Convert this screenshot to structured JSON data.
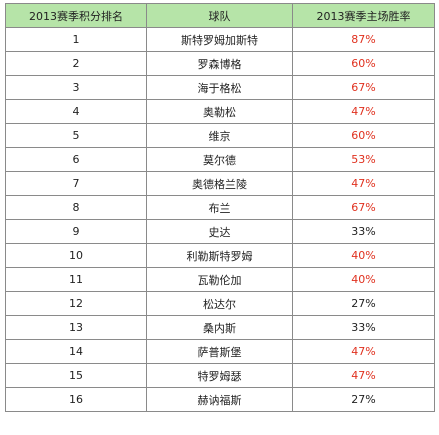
{
  "table": {
    "headers": [
      "2013赛季积分排名",
      "球队",
      "2013赛季主场胜率"
    ],
    "rows": [
      {
        "rank": "1",
        "team": "斯特罗姆加斯特",
        "rate": "87%",
        "color": "#e0301e"
      },
      {
        "rank": "2",
        "team": "罗森博格",
        "rate": "60%",
        "color": "#e0301e"
      },
      {
        "rank": "3",
        "team": "海于格松",
        "rate": "67%",
        "color": "#e0301e"
      },
      {
        "rank": "4",
        "team": "奥勒松",
        "rate": "47%",
        "color": "#e0301e"
      },
      {
        "rank": "5",
        "team": "维京",
        "rate": "60%",
        "color": "#e0301e"
      },
      {
        "rank": "6",
        "team": "莫尔德",
        "rate": "53%",
        "color": "#e0301e"
      },
      {
        "rank": "7",
        "team": "奥德格兰陵",
        "rate": "47%",
        "color": "#e0301e"
      },
      {
        "rank": "8",
        "team": "布兰",
        "rate": "67%",
        "color": "#e0301e"
      },
      {
        "rank": "9",
        "team": "史达",
        "rate": "33%",
        "color": "#222222"
      },
      {
        "rank": "10",
        "team": "利勒斯特罗姆",
        "rate": "40%",
        "color": "#e0301e"
      },
      {
        "rank": "11",
        "team": "瓦勒伦加",
        "rate": "40%",
        "color": "#e0301e"
      },
      {
        "rank": "12",
        "team": "松达尔",
        "rate": "27%",
        "color": "#222222"
      },
      {
        "rank": "13",
        "team": "桑内斯",
        "rate": "33%",
        "color": "#222222"
      },
      {
        "rank": "14",
        "team": "萨普斯堡",
        "rate": "47%",
        "color": "#e0301e"
      },
      {
        "rank": "15",
        "team": "特罗姆瑟",
        "rate": "47%",
        "color": "#e0301e"
      },
      {
        "rank": "16",
        "team": "赫讷福斯",
        "rate": "27%",
        "color": "#222222"
      }
    ]
  },
  "colors": {
    "header_bg": "#b6e4a8",
    "border": "#8a8a8a",
    "highlight": "#e0301e",
    "normal": "#222222"
  }
}
